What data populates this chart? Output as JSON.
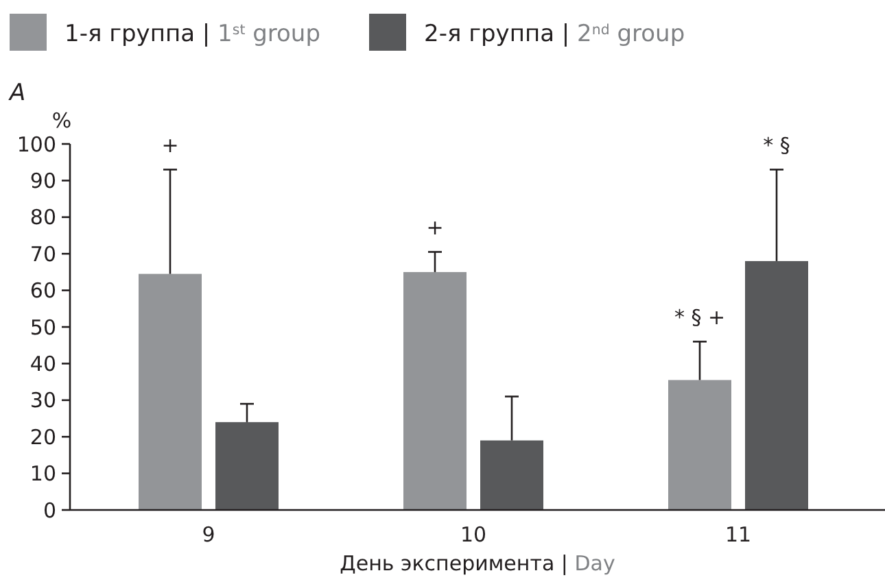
{
  "chart_data": {
    "type": "bar",
    "categories": [
      "9",
      "10",
      "11"
    ],
    "xlabel": "День эксперимента | Day",
    "ylabel": "%",
    "series": [
      {
        "name": "1-я группа | 1$^{st}$ group",
        "color": "#939598",
        "values": [
          64.5,
          65,
          35.5
        ],
        "errors": [
          [
            64.5,
            93
          ],
          [
            65,
            70.5
          ],
          [
            35.5,
            46
          ]
        ]
      },
      {
        "name": "2-я группа | 2$^{nd}$ group",
        "color": "#58595b",
        "values": [
          24,
          19,
          68
        ],
        "errors": [
          [
            24,
            29
          ],
          [
            19,
            31
          ],
          [
            68,
            93
          ]
        ]
      }
    ],
    "ylim": [
      0,
      100
    ],
    "yticks": [
      0,
      10,
      20,
      30,
      40,
      50,
      60,
      70,
      80,
      90,
      100
    ],
    "legend": "top left",
    "annotations": [
      "A",
      "+",
      "+",
      "* § +",
      "* §"
    ]
  }
}
